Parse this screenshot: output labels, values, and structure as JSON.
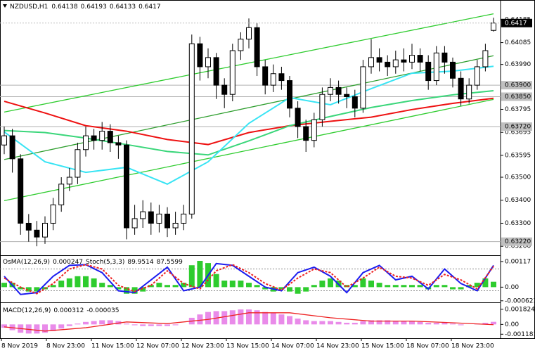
{
  "chart_data": [
    {
      "type": "candlestick",
      "symbol": "NZDUSD,H1",
      "open": [
        0.6364,
        0.6368,
        0.6358,
        0.633,
        0.6327,
        0.6324,
        0.633,
        0.6338,
        0.6347,
        0.635,
        0.6362,
        0.6368,
        0.6366,
        0.637,
        0.6365,
        0.6364,
        0.6328,
        0.6332,
        0.6335,
        0.633,
        0.6334,
        0.6328,
        0.633,
        0.6334,
        0.6408,
        0.6398,
        0.6402,
        0.639,
        0.6386,
        0.6405,
        0.641,
        0.6415,
        0.6398,
        0.639,
        0.6395,
        0.6392,
        0.638,
        0.6372,
        0.6366,
        0.6375,
        0.6386,
        0.6389,
        0.6386,
        0.6385,
        0.638,
        0.6398,
        0.6402,
        0.64,
        0.6398,
        0.6401,
        0.64,
        0.6403,
        0.64,
        0.6392,
        0.6404,
        0.64,
        0.6393,
        0.6384,
        0.639,
        0.6398,
        0.64138
      ],
      "high": [
        0.6372,
        0.6371,
        0.636,
        0.6334,
        0.6331,
        0.6333,
        0.6341,
        0.635,
        0.6354,
        0.6365,
        0.6372,
        0.6371,
        0.6374,
        0.6373,
        0.6368,
        0.6366,
        0.6338,
        0.634,
        0.6339,
        0.6338,
        0.6337,
        0.6335,
        0.6338,
        0.6412,
        0.6411,
        0.6406,
        0.6404,
        0.6393,
        0.6408,
        0.6413,
        0.6419,
        0.6417,
        0.6401,
        0.6399,
        0.6398,
        0.6394,
        0.6383,
        0.6375,
        0.6378,
        0.6389,
        0.6393,
        0.6392,
        0.6389,
        0.6388,
        0.6401,
        0.641,
        0.6406,
        0.6403,
        0.6405,
        0.6406,
        0.6408,
        0.6406,
        0.6403,
        0.6407,
        0.6407,
        0.6402,
        0.6396,
        0.6393,
        0.6401,
        0.6408,
        0.64193
      ],
      "low": [
        0.636,
        0.6352,
        0.6325,
        0.6322,
        0.632,
        0.6321,
        0.6327,
        0.6335,
        0.6344,
        0.6347,
        0.6359,
        0.6362,
        0.6362,
        0.6361,
        0.6358,
        0.6323,
        0.6325,
        0.6328,
        0.6325,
        0.6326,
        0.6324,
        0.6325,
        0.6327,
        0.6332,
        0.6392,
        0.6393,
        0.6384,
        0.638,
        0.6383,
        0.6401,
        0.6406,
        0.6394,
        0.6386,
        0.6387,
        0.6388,
        0.6376,
        0.6367,
        0.6361,
        0.6363,
        0.6372,
        0.6383,
        0.6382,
        0.638,
        0.6376,
        0.6378,
        0.6395,
        0.6396,
        0.6394,
        0.6395,
        0.6396,
        0.6397,
        0.6396,
        0.6388,
        0.639,
        0.6395,
        0.6389,
        0.6381,
        0.6382,
        0.6388,
        0.6396,
        0.64133
      ],
      "close": [
        0.6368,
        0.6358,
        0.633,
        0.6327,
        0.6324,
        0.633,
        0.6338,
        0.6347,
        0.635,
        0.6362,
        0.6368,
        0.6366,
        0.637,
        0.6365,
        0.6364,
        0.6328,
        0.6332,
        0.6335,
        0.633,
        0.6334,
        0.6328,
        0.633,
        0.6334,
        0.6408,
        0.6398,
        0.6402,
        0.639,
        0.6386,
        0.6405,
        0.641,
        0.6415,
        0.6398,
        0.639,
        0.6395,
        0.6392,
        0.638,
        0.6372,
        0.6366,
        0.6375,
        0.6386,
        0.6389,
        0.6386,
        0.6385,
        0.638,
        0.6398,
        0.6402,
        0.64,
        0.6398,
        0.6401,
        0.64,
        0.6403,
        0.64,
        0.6392,
        0.6404,
        0.64,
        0.6393,
        0.6384,
        0.639,
        0.6398,
        0.6405,
        0.6417
      ],
      "series": [
        {
          "color": "#2ecc2e",
          "x": [
            0,
            60
          ],
          "values": [
            0.63783,
            0.6421
          ]
        },
        {
          "color": "#2ecc2e",
          "x": [
            0,
            60
          ],
          "values": [
            0.63398,
            0.63838
          ]
        },
        {
          "color": "#2e9e2e",
          "x": [
            0,
            60
          ],
          "values": [
            0.63577,
            0.64028
          ]
        },
        {
          "color": "#ee1111",
          "x": [
            0,
            5,
            10,
            15,
            20,
            25,
            30,
            35,
            40,
            45,
            50,
            55,
            60
          ],
          "values": [
            0.6383,
            0.63779,
            0.63724,
            0.637,
            0.63664,
            0.63642,
            0.63694,
            0.63724,
            0.63743,
            0.63761,
            0.63794,
            0.63821,
            0.63843
          ]
        },
        {
          "color": "#3ad67a",
          "x": [
            0,
            5,
            10,
            15,
            20,
            25,
            30,
            35,
            40,
            45,
            50,
            55,
            60
          ],
          "values": [
            0.63703,
            0.63694,
            0.6367,
            0.63642,
            0.63612,
            0.63597,
            0.63658,
            0.63724,
            0.63764,
            0.63803,
            0.63833,
            0.63858,
            0.63876
          ]
        },
        {
          "color": "#38e4f4",
          "x": [
            0,
            5,
            10,
            15,
            20,
            25,
            30,
            35,
            40,
            45,
            50,
            55,
            60
          ],
          "values": [
            0.63697,
            0.63567,
            0.63521,
            0.63543,
            0.6347,
            0.63567,
            0.63734,
            0.63846,
            0.63815,
            0.63885,
            0.63952,
            0.63961,
            0.63982
          ]
        }
      ],
      "ylim": [
        0.63167,
        0.64264
      ],
      "yticks": [
        0.64185,
        0.64085,
        {
          "value": 0.6399,
          "label": "0.63990"
        },
        0.63795,
        0.63695,
        0.63595,
        {
          "value": 0.635,
          "label": "0.63500"
        },
        {
          "value": 0.634,
          "label": "0.63400"
        },
        {
          "value": 0.633,
          "label": "0.63300"
        },
        {
          "value": 0.632,
          "label": "0.63200"
        }
      ],
      "levels": [
        {
          "value": 0.639,
          "label": "0.63900"
        },
        {
          "value": 0.6385,
          "label": "0.63850"
        },
        {
          "value": 0.6372,
          "label": "0.63720"
        },
        {
          "value": 0.6322,
          "label": "0.63220"
        }
      ]
    },
    {
      "type": "osma",
      "osma_title": "OsMA(12,26,9)",
      "stoch_title": "Stoch(5,3,3)",
      "color": "#2ecc2e",
      "values": [
        0.0002,
        0.0002,
        -0.0001,
        -0.0002,
        -0.0002,
        -0.0001,
        0.0001,
        0.0003,
        0.0004,
        0.0005,
        0.0005,
        0.0004,
        0.0002,
        0.0001,
        -0.0001,
        -0.0003,
        -0.0003,
        -0.0002,
        0.0001,
        0.0002,
        0.0001,
        0.0001,
        0.0002,
        0.001,
        0.0012,
        0.0011,
        0.0006,
        0.0003,
        0.0003,
        0.0003,
        0.0002,
        0.0001,
        -0.0001,
        -0.0002,
        -0.0001,
        -0.0002,
        -0.0003,
        -0.0002,
        0.0001,
        0.0003,
        0.0004,
        0.0003,
        0.0001,
        0.0001,
        0.0004,
        0.0003,
        0.0002,
        0.0001,
        0.0001,
        0.0001,
        0.0001,
        0.0001,
        -0.0001,
        0.0001,
        0.0001,
        -0.0001,
        -0.0001,
        0.0001,
        0.0002,
        0.0004,
        0.000247
      ],
      "series": [
        {
          "color": "#1c1cf0",
          "axis": "y2",
          "x": [
            0,
            2,
            4,
            6,
            8,
            10,
            12,
            14,
            16,
            18,
            20,
            22,
            24,
            26,
            28,
            30,
            32,
            34,
            36,
            38,
            40,
            42,
            44,
            46,
            48,
            50,
            52,
            54,
            56,
            58,
            60
          ],
          "values": [
            60,
            10,
            15,
            60,
            90,
            92,
            70,
            20,
            15,
            50,
            85,
            20,
            30,
            95,
            90,
            60,
            30,
            20,
            70,
            85,
            60,
            15,
            70,
            90,
            50,
            60,
            25,
            80,
            40,
            20,
            89.9514
          ]
        },
        {
          "color": "#ee2222",
          "axis": "y2",
          "dashed": true,
          "x": [
            0,
            2,
            4,
            6,
            8,
            10,
            12,
            14,
            16,
            18,
            20,
            22,
            24,
            26,
            28,
            30,
            32,
            34,
            36,
            38,
            40,
            42,
            44,
            46,
            48,
            50,
            52,
            54,
            56,
            58,
            60
          ],
          "values": [
            55,
            30,
            12,
            40,
            80,
            92,
            80,
            35,
            18,
            35,
            75,
            40,
            25,
            75,
            92,
            70,
            40,
            22,
            55,
            80,
            70,
            30,
            55,
            85,
            60,
            55,
            35,
            65,
            50,
            25,
            87.5599
          ]
        }
      ],
      "ylim": [
        -0.00063,
        0.00136
      ],
      "yticks": [
        0.00117,
        {
          "value": 0,
          "label": "0.00"
        },
        -0.000623
      ],
      "y2lim": [
        -8,
        112
      ],
      "y2levels": [
        80,
        20
      ]
    },
    {
      "type": "macd",
      "title": "MACD(12,26,9)",
      "color": "#e98be9",
      "values": [
        -0.0004,
        -0.0007,
        -0.001,
        -0.0011,
        -0.0011,
        -0.001,
        -0.0008,
        -0.0005,
        -0.0002,
        0.0001,
        0.0003,
        0.0004,
        0.0005,
        0.0005,
        0.0004,
        0.0001,
        -0.0001,
        -0.0002,
        -0.0002,
        -0.0002,
        -0.0002,
        -0.0001,
        0,
        0.0008,
        0.0012,
        0.0015,
        0.0016,
        0.0016,
        0.0017,
        0.0018,
        0.0018,
        0.0017,
        0.0015,
        0.0014,
        0.0012,
        0.001,
        0.0007,
        0.0005,
        0.0004,
        0.0004,
        0.0004,
        0.0003,
        0.0002,
        0.0002,
        0.0004,
        0.0005,
        0.0005,
        0.0005,
        0.0004,
        0.0004,
        0.0004,
        0.0003,
        0.0002,
        0.0002,
        0.0002,
        0.0001,
        -0.0001,
        0,
        0.0001,
        0.0002,
        0.000312
      ],
      "series": [
        {
          "color": "#ee2222",
          "x": [
            0,
            5,
            10,
            15,
            20,
            25,
            30,
            35,
            40,
            45,
            50,
            55,
            60
          ],
          "values": [
            -0.0003,
            -0.0008,
            -0.0004,
            0.0003,
            0.0001,
            0.0006,
            0.0014,
            0.0014,
            0.0008,
            0.0004,
            0.0004,
            0.0002,
            -3.5e-05
          ]
        }
      ],
      "ylim": [
        -0.00141,
        0.0024
      ],
      "yticks": [
        0.001824,
        {
          "value": 0,
          "label": "0.00"
        },
        -0.001181
      ],
      "time_labels": [
        "8 Nov 2019",
        "8 Nov 23:00",
        "11 Nov 15:00",
        "12 Nov 07:00",
        "12 Nov 23:00",
        "13 Nov 15:00",
        "14 Nov 07:00",
        "14 Nov 23:00",
        "15 Nov 15:00",
        "18 Nov 07:00",
        "18 Nov 23:00"
      ]
    }
  ]
}
